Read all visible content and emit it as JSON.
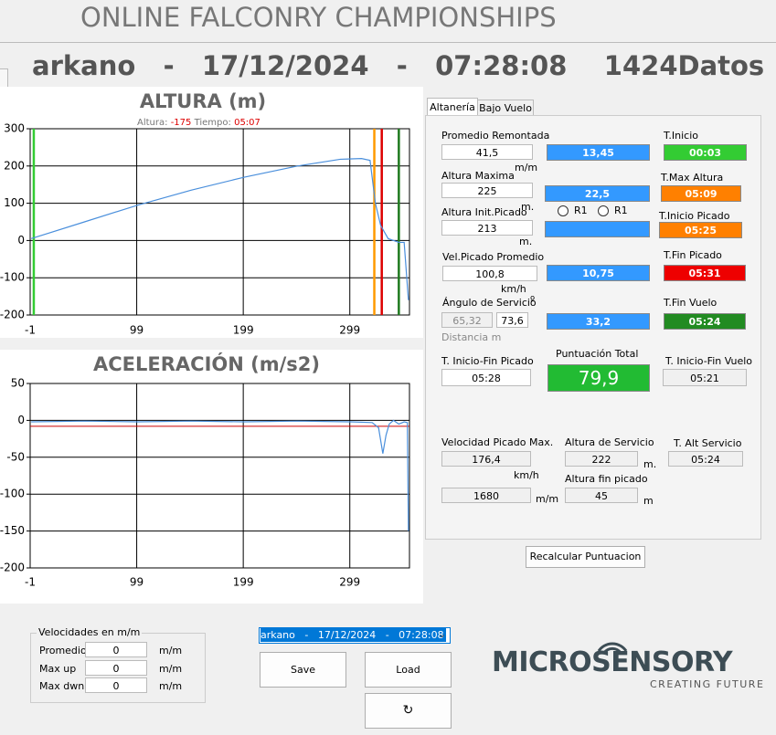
{
  "header": {
    "title": "ONLINE FALCONRY CHAMPIONSHIPS",
    "session": "arkano   -   17/12/2024   -   07:28:08    1424Datos"
  },
  "chart_data": [
    {
      "type": "line",
      "title": "ALTURA (m)",
      "annotation": {
        "altura_label": "Altura:",
        "altura_value": "-175",
        "tiempo_label": "Tiempo:",
        "tiempo_value": "05:07"
      },
      "x": [
        0,
        50,
        100,
        150,
        200,
        250,
        290,
        310,
        318,
        323,
        328,
        335,
        345,
        350,
        354
      ],
      "series": [
        {
          "color": "#4a8fdc",
          "values": [
            5,
            50,
            95,
            135,
            170,
            200,
            218,
            220,
            215,
            100,
            40,
            5,
            -5,
            -5,
            -160
          ]
        }
      ],
      "markers": [
        {
          "value": 2.4,
          "color": "#33cc33"
        },
        {
          "value": 322,
          "color": "#ff9900"
        },
        {
          "value": 329,
          "color": "#dd0000"
        },
        {
          "value": 345,
          "color": "#1f7a1f"
        }
      ],
      "xlim": [
        -1,
        355
      ],
      "ylim": [
        -200,
        300
      ],
      "xticks": [
        -1,
        99,
        199,
        299
      ],
      "yticks": [
        -200,
        -100,
        0,
        100,
        200,
        300
      ],
      "grid": true
    },
    {
      "type": "line",
      "title": "ACELERACIÓN (m/s2)",
      "x": [
        0,
        50,
        100,
        150,
        200,
        250,
        300,
        320,
        326,
        330,
        333,
        336,
        340,
        345,
        350,
        353,
        354
      ],
      "series": [
        {
          "color": "#4a8fdc",
          "values": [
            -2,
            -1,
            -2,
            -1,
            -2,
            -1,
            -2,
            -3,
            -10,
            -45,
            -20,
            -5,
            0,
            -5,
            -2,
            -3,
            -150
          ]
        }
      ],
      "threshold": {
        "value": -8,
        "color": "#cc0000"
      },
      "xlim": [
        -1,
        355
      ],
      "ylim": [
        -200,
        50
      ],
      "xticks": [
        -1,
        99,
        199,
        299
      ],
      "yticks": [
        -200,
        -150,
        -100,
        -50,
        0,
        50
      ],
      "grid": true
    }
  ],
  "tabs": [
    "Altanería",
    "Bajo Vuelo"
  ],
  "fields": {
    "promedio_remontada": {
      "label": "Promedio Remontada",
      "value": "41,5",
      "unit": "m/m",
      "score": "13,45"
    },
    "altura_maxima": {
      "label": "Altura Maxima",
      "value": "225",
      "unit": "m.",
      "score": "22,5"
    },
    "altura_init_picado": {
      "label": "Altura Init.Picado",
      "value": "213",
      "unit": "m.",
      "radio1": "R1",
      "radio2": "R1"
    },
    "vel_picado": {
      "label": "Vel.Picado Promedio",
      "value": "100,8",
      "unit": "km/h",
      "score": "10,75"
    },
    "angulo": {
      "label": "Ángulo de Servicio",
      "unit": "º",
      "value1": "65,32",
      "value2": "73,6",
      "note": "Distancia m",
      "score": "33,2"
    },
    "t_inicio": {
      "label": "T.Inicio",
      "value": "00:03"
    },
    "t_max_altura": {
      "label": "T.Max Altura",
      "value": "05:09"
    },
    "t_inicio_picado": {
      "label": "T.Inicio Picado",
      "value": "05:25"
    },
    "t_fin_picado": {
      "label": "T.Fin Picado",
      "value": "05:31"
    },
    "t_fin_vuelo": {
      "label": "T.Fin Vuelo",
      "value": "05:24"
    },
    "t_inicio_fin_picado": {
      "label": "T. Inicio-Fin Picado",
      "value": "05:28"
    },
    "puntuacion": {
      "label": "Puntuación Total",
      "value": "79,9"
    },
    "t_inicio_fin_vuelo": {
      "label": "T. Inicio-Fin Vuelo",
      "value": "05:21"
    },
    "vel_picado_max": {
      "label": "Velocidad Picado Max.",
      "value": "176,4",
      "unit": "km/h",
      "value2": "1680",
      "unit2": "m/m"
    },
    "altura_servicio": {
      "label": "Altura de Servicio",
      "value": "222",
      "unit": "m."
    },
    "altura_fin_picado": {
      "label": "Altura fin picado",
      "value": "45",
      "unit": "m"
    },
    "t_alt_servicio": {
      "label": "T. Alt Servicio",
      "value": "05:24"
    }
  },
  "recalc_button": "Recalcular Puntuacion",
  "velocidades": {
    "title": "Velocidades en m/m",
    "rows": [
      {
        "label": "Promedio",
        "value": "0",
        "unit": "m/m"
      },
      {
        "label": "Max up",
        "value": "0",
        "unit": "m/m"
      },
      {
        "label": "Max dwn",
        "value": "0",
        "unit": "m/m"
      }
    ]
  },
  "session_select": "arkano   -   17/12/2024   -   07:28:08",
  "buttons": {
    "save": "Save",
    "load": "Load",
    "refresh": "↻"
  },
  "logo": {
    "name": "MICROSENSORY",
    "tagline": "CREATING FUTURE"
  }
}
